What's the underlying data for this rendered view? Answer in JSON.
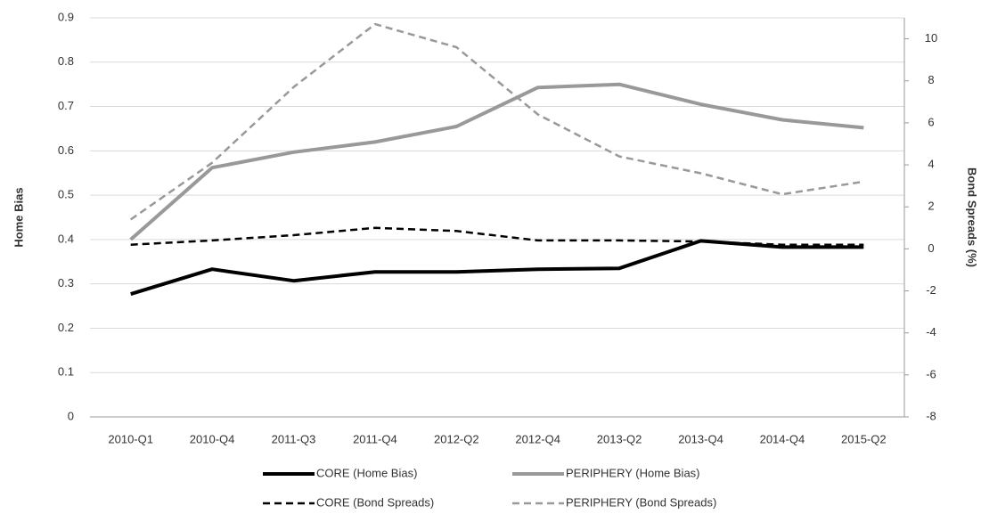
{
  "chart_data": {
    "type": "line",
    "y_label": "Home Bias",
    "y2_label": "Bond Spreads (%)",
    "categories": [
      "2010-Q1",
      "2010-Q4",
      "2011-Q3",
      "2011-Q4",
      "2012-Q2",
      "2012-Q4",
      "2013-Q2",
      "2013-Q4",
      "2014-Q4",
      "2015-Q2"
    ],
    "series": [
      {
        "name": "CORE (Home Bias)",
        "color": "#000000",
        "dashed": false,
        "values": [
          0.277,
          0.333,
          0.307,
          0.327,
          0.327,
          0.333,
          0.335,
          0.397,
          0.383,
          0.383
        ]
      },
      {
        "name": "PERIPHERY (Home Bias)",
        "color": "#999999",
        "dashed": false,
        "values": [
          0.4,
          0.562,
          0.597,
          0.62,
          0.655,
          0.743,
          0.75,
          0.705,
          0.67,
          0.652
        ]
      },
      {
        "name": "CORE (Bond Spreads)",
        "color": "#000000",
        "dashed": true,
        "axis": "y2",
        "values": [
          0.2,
          0.4,
          0.65,
          1.0,
          0.85,
          0.4,
          0.4,
          0.35,
          0.2,
          0.2
        ]
      },
      {
        "name": "PERIPHERY (Bond Spreads)",
        "color": "#999999",
        "dashed": true,
        "axis": "y2",
        "values": [
          1.4,
          4.1,
          7.7,
          10.7,
          9.6,
          6.4,
          4.4,
          3.6,
          2.6,
          3.2
        ]
      }
    ],
    "ylim": [
      0,
      0.9
    ],
    "yticks": [
      0,
      0.1,
      0.2,
      0.3,
      0.4,
      0.5,
      0.6,
      0.7,
      0.8,
      0.9
    ],
    "y2lim": [
      -8,
      11
    ],
    "y2ticks": [
      -8,
      -6,
      -4,
      -2,
      0,
      2,
      4,
      6,
      8,
      10
    ],
    "grid": true,
    "legend": "bottom"
  }
}
